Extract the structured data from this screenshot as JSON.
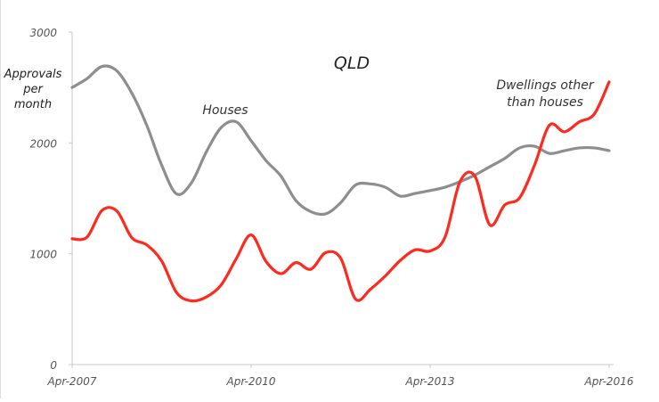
{
  "chart_data": {
    "type": "line",
    "title": "QLD",
    "ylabel": "Approvals per month",
    "ylabel_lines": [
      "Approvals",
      "per",
      "month"
    ],
    "xlabel": "",
    "ylim": [
      0,
      3000
    ],
    "yticks": [
      0,
      1000,
      2000,
      3000
    ],
    "xlim": [
      "2007-04",
      "2016-04"
    ],
    "xticks": [
      {
        "date": "2007-04",
        "label": "Apr-2007"
      },
      {
        "date": "2010-04",
        "label": "Apr-2010"
      },
      {
        "date": "2013-04",
        "label": "Apr-2013"
      },
      {
        "date": "2016-04",
        "label": "Apr-2016"
      }
    ],
    "grid": false,
    "legend": "none (direct labels)",
    "x": [
      "2007-04",
      "2007-07",
      "2007-10",
      "2008-01",
      "2008-04",
      "2008-07",
      "2008-10",
      "2009-01",
      "2009-04",
      "2009-07",
      "2009-10",
      "2010-01",
      "2010-04",
      "2010-07",
      "2010-10",
      "2011-01",
      "2011-04",
      "2011-07",
      "2011-10",
      "2012-01",
      "2012-04",
      "2012-07",
      "2012-10",
      "2013-01",
      "2013-04",
      "2013-07",
      "2013-10",
      "2014-01",
      "2014-04",
      "2014-07",
      "2014-10",
      "2015-01",
      "2015-04",
      "2015-07",
      "2015-10",
      "2016-01",
      "2016-04"
    ],
    "series": [
      {
        "name": "Houses",
        "label_lines": [
          "Houses"
        ],
        "color": "#8e8e8e",
        "values": [
          2500,
          2580,
          2690,
          2650,
          2450,
          2160,
          1800,
          1540,
          1640,
          1920,
          2140,
          2190,
          2020,
          1840,
          1700,
          1480,
          1380,
          1360,
          1460,
          1620,
          1630,
          1600,
          1520,
          1545,
          1570,
          1600,
          1650,
          1710,
          1785,
          1860,
          1955,
          1970,
          1905,
          1930,
          1955,
          1955,
          1930
        ]
      },
      {
        "name": "Dwellings other than houses",
        "label_lines": [
          "Dwellings other",
          "than houses"
        ],
        "color": "#ff2a1f",
        "values": [
          1135,
          1150,
          1390,
          1385,
          1145,
          1080,
          935,
          650,
          575,
          610,
          720,
          955,
          1170,
          930,
          820,
          920,
          860,
          1010,
          960,
          590,
          680,
          800,
          940,
          1035,
          1025,
          1150,
          1650,
          1700,
          1260,
          1440,
          1505,
          1800,
          2160,
          2100,
          2190,
          2260,
          2550
        ]
      }
    ]
  }
}
